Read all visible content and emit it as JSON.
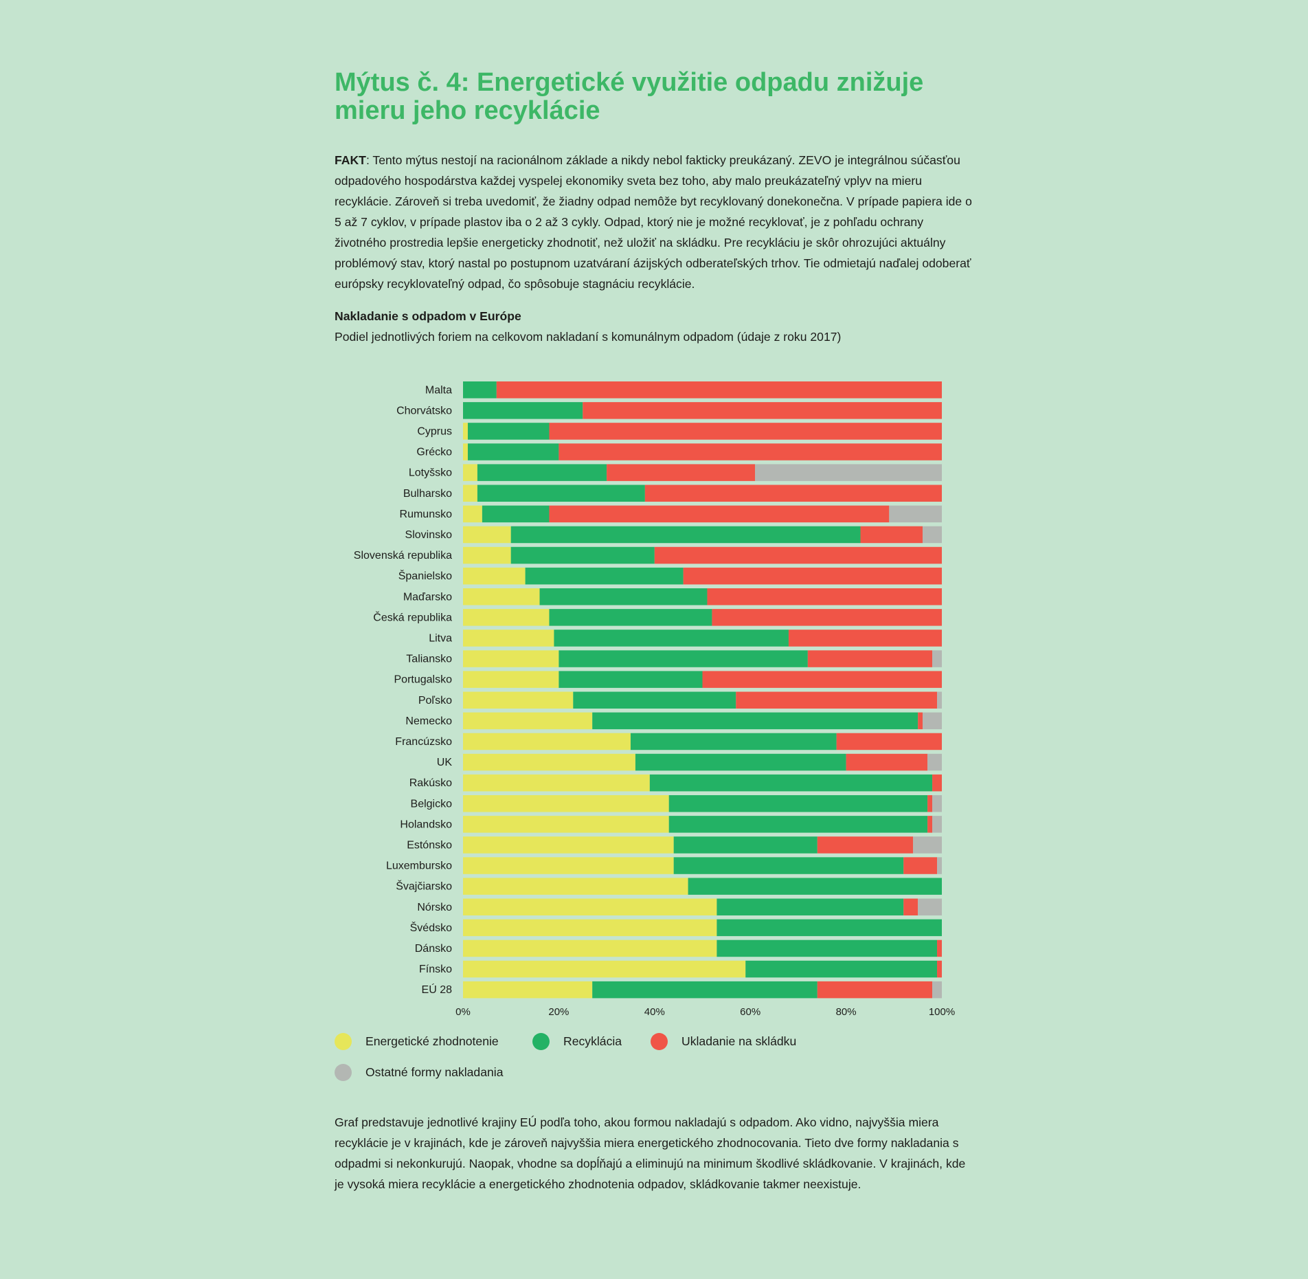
{
  "page": {
    "title": "Mýtus č. 4: Energetické využitie odpadu znižuje mieru jeho recyklácie",
    "fact_label": "FAKT",
    "fact_text": ": Tento mýtus nestojí na racionálnom základe a nikdy nebol fakticky preukázaný. ZEVO je integrálnou súčasťou odpadového hospodárstva každej vyspelej ekonomiky sveta bez toho, aby malo preukázateľný vplyv na mieru recyklácie. Zároveň si treba uvedomiť, že žiadny odpad nemôže byt recyklovaný donekonečna. V prípade papiera ide o 5 až 7 cyklov, v prípade plastov iba o 2 až 3 cykly. Odpad, ktorý nie je možné recyklovať, je z pohľadu ochrany životného prostredia lepšie energeticky zhodnotiť, než uložiť na skládku. Pre recykláciu je skôr ohrozujúci aktuálny problémový stav, ktorý nastal po postupnom uzatváraní ázijských odberateľských trhov. Tie odmietajú naďalej odoberať európsky recyklovateľný odpad, čo spôsobuje stagnáciu recyklácie.",
    "note": "Graf predstavuje jednotlivé krajiny EÚ podľa toho, akou formou nakladajú s odpadom. Ako vidno, najvyššia miera recyklácie je v krajinách, kde je zároveň najvyššia miera energetického zhodnocovania. Tieto dve formy nakladania s odpadmi si nekonkurujú. Naopak, vhodne sa dopĺňajú a eliminujú na minimum škodlivé skládkovanie. V krajinách, kde je vysoká miera recyklácie a energetického zhodnotenia odpadov, skládkovanie takmer neexistuje."
  },
  "colors": {
    "background": "#c5e4cf",
    "title": "#3db766",
    "energy": "#e6e65a",
    "recycling": "#23b265",
    "landfill": "#f05547",
    "other": "#b3b7b3"
  },
  "chart_data": {
    "type": "bar",
    "orientation": "horizontal",
    "stacked": true,
    "title": "Nakladanie s odpadom v Európe",
    "subtitle": "Podiel jednotlivých foriem na celkovom nakladaní s komunálnym odpadom (údaje z roku 2017)",
    "xlim": [
      0,
      100
    ],
    "x_ticks": [
      "0%",
      "20%",
      "40%",
      "60%",
      "80%",
      "100%"
    ],
    "grid": false,
    "legend_position": "bottom",
    "categories": [
      "Malta",
      "Chorvátsko",
      "Cyprus",
      "Grécko",
      "Lotyšsko",
      "Bulharsko",
      "Rumunsko",
      "Slovinsko",
      "Slovenská republika",
      "Španielsko",
      "Maďarsko",
      "Česká republika",
      "Litva",
      "Taliansko",
      "Portugalsko",
      "Poľsko",
      "Nemecko",
      "Francúzsko",
      "UK",
      "Rakúsko",
      "Belgicko",
      "Holandsko",
      "Estónsko",
      "Luxembursko",
      "Švajčiarsko",
      "Nórsko",
      "Švédsko",
      "Dánsko",
      "Fínsko",
      "EÚ 28"
    ],
    "series": [
      {
        "name": "Energetické zhodnotenie",
        "color": "#e6e65a",
        "values": [
          0,
          0,
          1,
          1,
          3,
          3,
          4,
          10,
          10,
          13,
          16,
          18,
          19,
          20,
          20,
          23,
          27,
          35,
          36,
          39,
          43,
          43,
          44,
          44,
          47,
          53,
          53,
          53,
          59,
          27
        ]
      },
      {
        "name": "Recyklácia",
        "color": "#23b265",
        "values": [
          7,
          25,
          17,
          19,
          27,
          35,
          14,
          73,
          30,
          33,
          35,
          34,
          49,
          52,
          30,
          34,
          68,
          43,
          44,
          59,
          54,
          54,
          30,
          48,
          53,
          39,
          47,
          46,
          40,
          47
        ]
      },
      {
        "name": "Ukladanie na skládku",
        "color": "#f05547",
        "values": [
          93,
          75,
          82,
          80,
          31,
          62,
          71,
          13,
          60,
          54,
          49,
          48,
          32,
          26,
          50,
          42,
          1,
          22,
          17,
          2,
          1,
          1,
          20,
          7,
          0,
          3,
          0,
          1,
          1,
          24
        ]
      },
      {
        "name": "Ostatné formy nakladania",
        "color": "#b3b7b3",
        "values": [
          0,
          0,
          0,
          0,
          39,
          0,
          11,
          4,
          0,
          0,
          0,
          0,
          0,
          2,
          0,
          1,
          4,
          0,
          3,
          0,
          2,
          2,
          6,
          1,
          0,
          5,
          0,
          0,
          0,
          2
        ]
      }
    ]
  }
}
